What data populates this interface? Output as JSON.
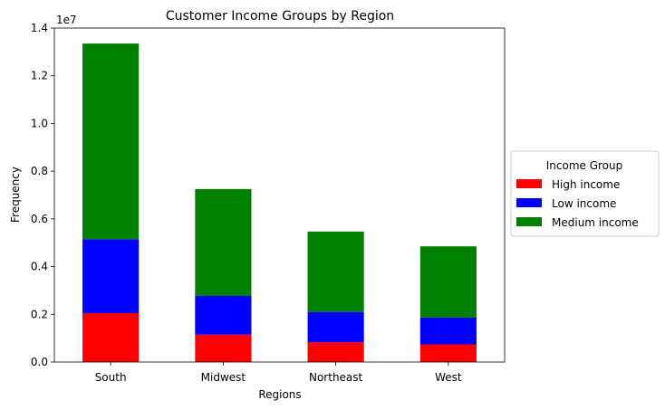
{
  "chart_data": {
    "type": "bar",
    "stacked": true,
    "title": "Customer Income Groups by Region",
    "xlabel": "Regions",
    "ylabel": "Frequency",
    "y_offset_label": "1e7",
    "categories": [
      "South",
      "Midwest",
      "Northeast",
      "West"
    ],
    "series": [
      {
        "name": "High income",
        "color": "#ff0000",
        "values": [
          2050000,
          1150000,
          830000,
          740000
        ]
      },
      {
        "name": "Low income",
        "color": "#0000ff",
        "values": [
          3100000,
          1620000,
          1270000,
          1120000
        ]
      },
      {
        "name": "Medium income",
        "color": "#008000",
        "values": [
          8200000,
          4480000,
          3370000,
          2990000
        ]
      }
    ],
    "ylim": [
      0,
      14000000
    ],
    "yticks": [
      {
        "value": 0,
        "label": "0.0"
      },
      {
        "value": 2000000,
        "label": "0.2"
      },
      {
        "value": 4000000,
        "label": "0.4"
      },
      {
        "value": 6000000,
        "label": "0.6"
      },
      {
        "value": 8000000,
        "label": "0.8"
      },
      {
        "value": 10000000,
        "label": "1.0"
      },
      {
        "value": 12000000,
        "label": "1.2"
      },
      {
        "value": 14000000,
        "label": "1.4"
      }
    ],
    "legend": {
      "title": "Income Group",
      "placement": "center-right outside"
    },
    "grid": false
  }
}
